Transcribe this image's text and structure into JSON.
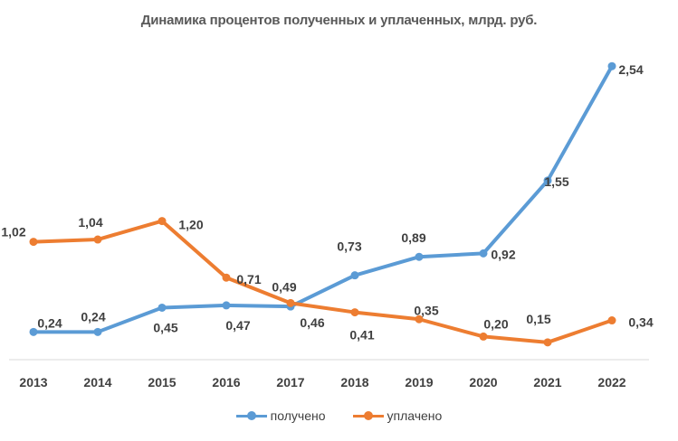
{
  "chart_data": {
    "type": "line",
    "title": "Динамика процентов полученных и уплаченных, млрд. руб.",
    "categories": [
      "2013",
      "2014",
      "2015",
      "2016",
      "2017",
      "2018",
      "2019",
      "2020",
      "2021",
      "2022"
    ],
    "series": [
      {
        "name": "получено",
        "color": "#5B9BD5",
        "values": [
          0.24,
          0.24,
          0.45,
          0.47,
          0.46,
          0.73,
          0.89,
          0.92,
          1.55,
          2.54
        ],
        "labels": [
          "0,24",
          "0,24",
          "0,45",
          "0,47",
          "0,46",
          "0,73",
          "0,89",
          "0,92",
          "1,55",
          "2,54"
        ]
      },
      {
        "name": "уплачено",
        "color": "#ED7D31",
        "values": [
          1.02,
          1.04,
          1.2,
          0.71,
          0.49,
          0.41,
          0.35,
          0.2,
          0.15,
          0.34
        ],
        "labels": [
          "1,02",
          "1,04",
          "1,20",
          "0,71",
          "0,49",
          "0,41",
          "0,35",
          "0,20",
          "0,15",
          "0,34"
        ]
      }
    ],
    "ylim": [
      0,
      2.8
    ],
    "grid": false,
    "legend": "bottom"
  }
}
